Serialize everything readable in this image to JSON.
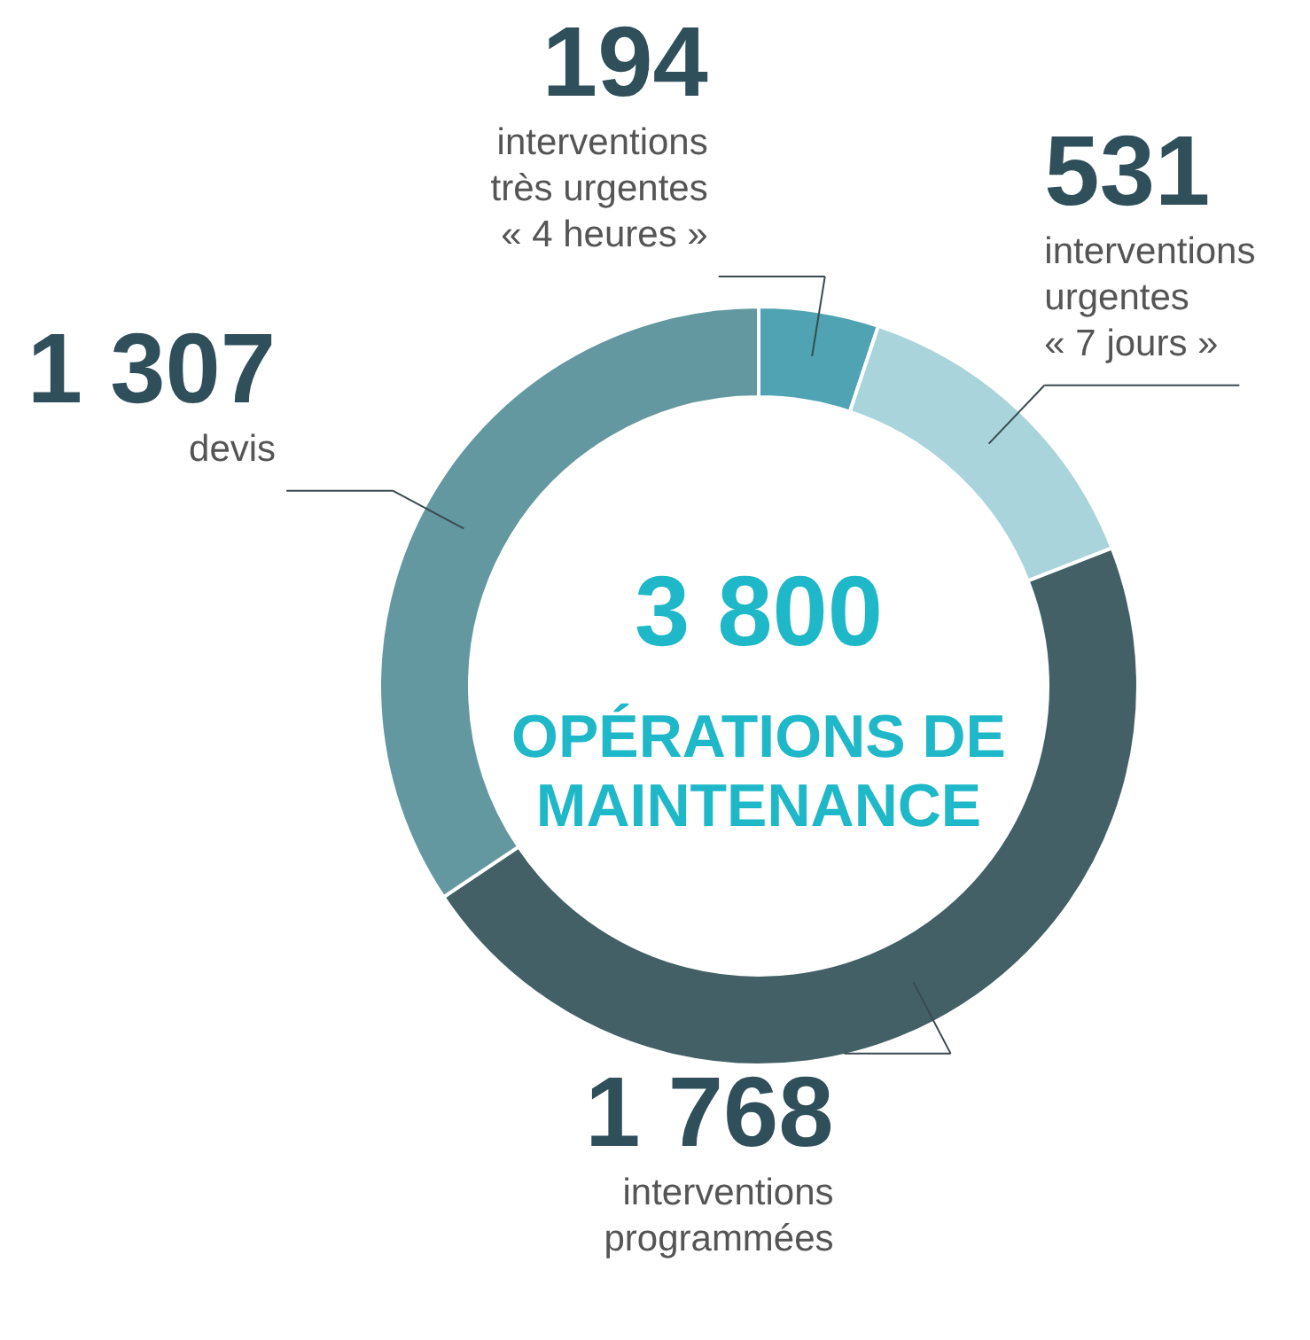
{
  "chart_data": {
    "type": "donut",
    "categories": [
      "interventions\ntrès urgentes\n« 4 heures »",
      "interventions\nurgentes\n« 7 jours »",
      "interventions\nprogrammées",
      "devis"
    ],
    "values": [
      194,
      531,
      1768,
      1307
    ],
    "colors": [
      "#4fa3b3",
      "#a9d4dc",
      "#426066",
      "#6398a1"
    ],
    "value_labels": [
      "194",
      "531",
      "1 768",
      "1 307"
    ],
    "annotations": [
      "3 800",
      "OPÉRATIONS DE\nMAINTENANCE"
    ]
  }
}
